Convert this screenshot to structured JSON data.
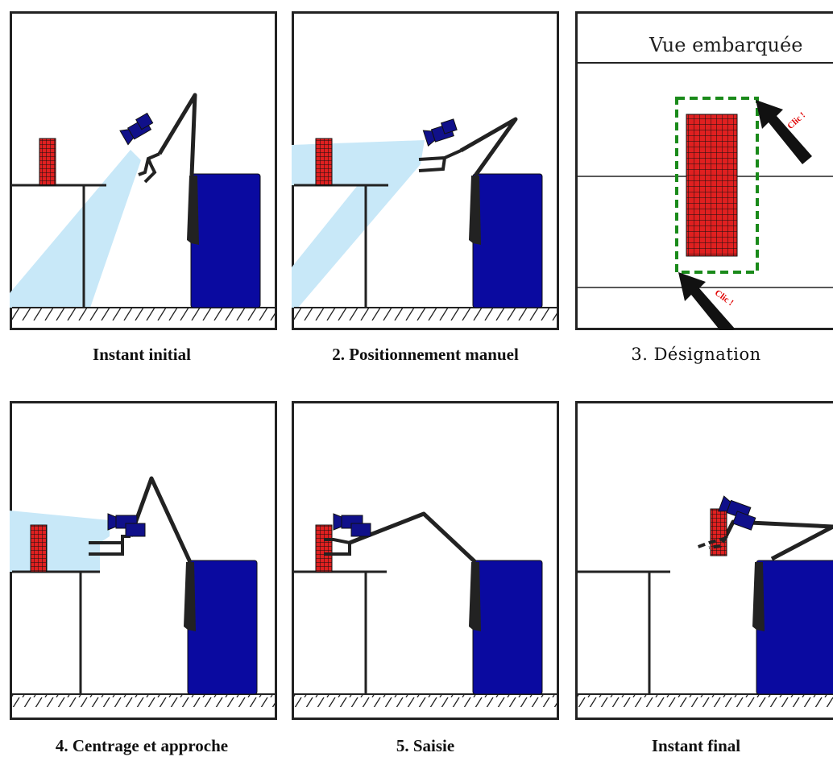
{
  "captions": {
    "p1": "Instant initial",
    "p2": "2. Positionnement manuel",
    "p3": "3.  Désignation",
    "p4": "4. Centrage et approche",
    "p5": "5. Saisie",
    "p6": "Instant final"
  },
  "onboard_view": {
    "title": "Vue embarquée",
    "click_label_1": "Clic !",
    "click_label_2": "Clic !"
  },
  "colors": {
    "frame": "#222222",
    "robot_body": "#0a0aa0",
    "camera": "#10108a",
    "light_cone": "#c8e8f8",
    "target_red": "#e02020",
    "selection_dashed": "#1a8a1a",
    "click_label": "#e00000"
  }
}
